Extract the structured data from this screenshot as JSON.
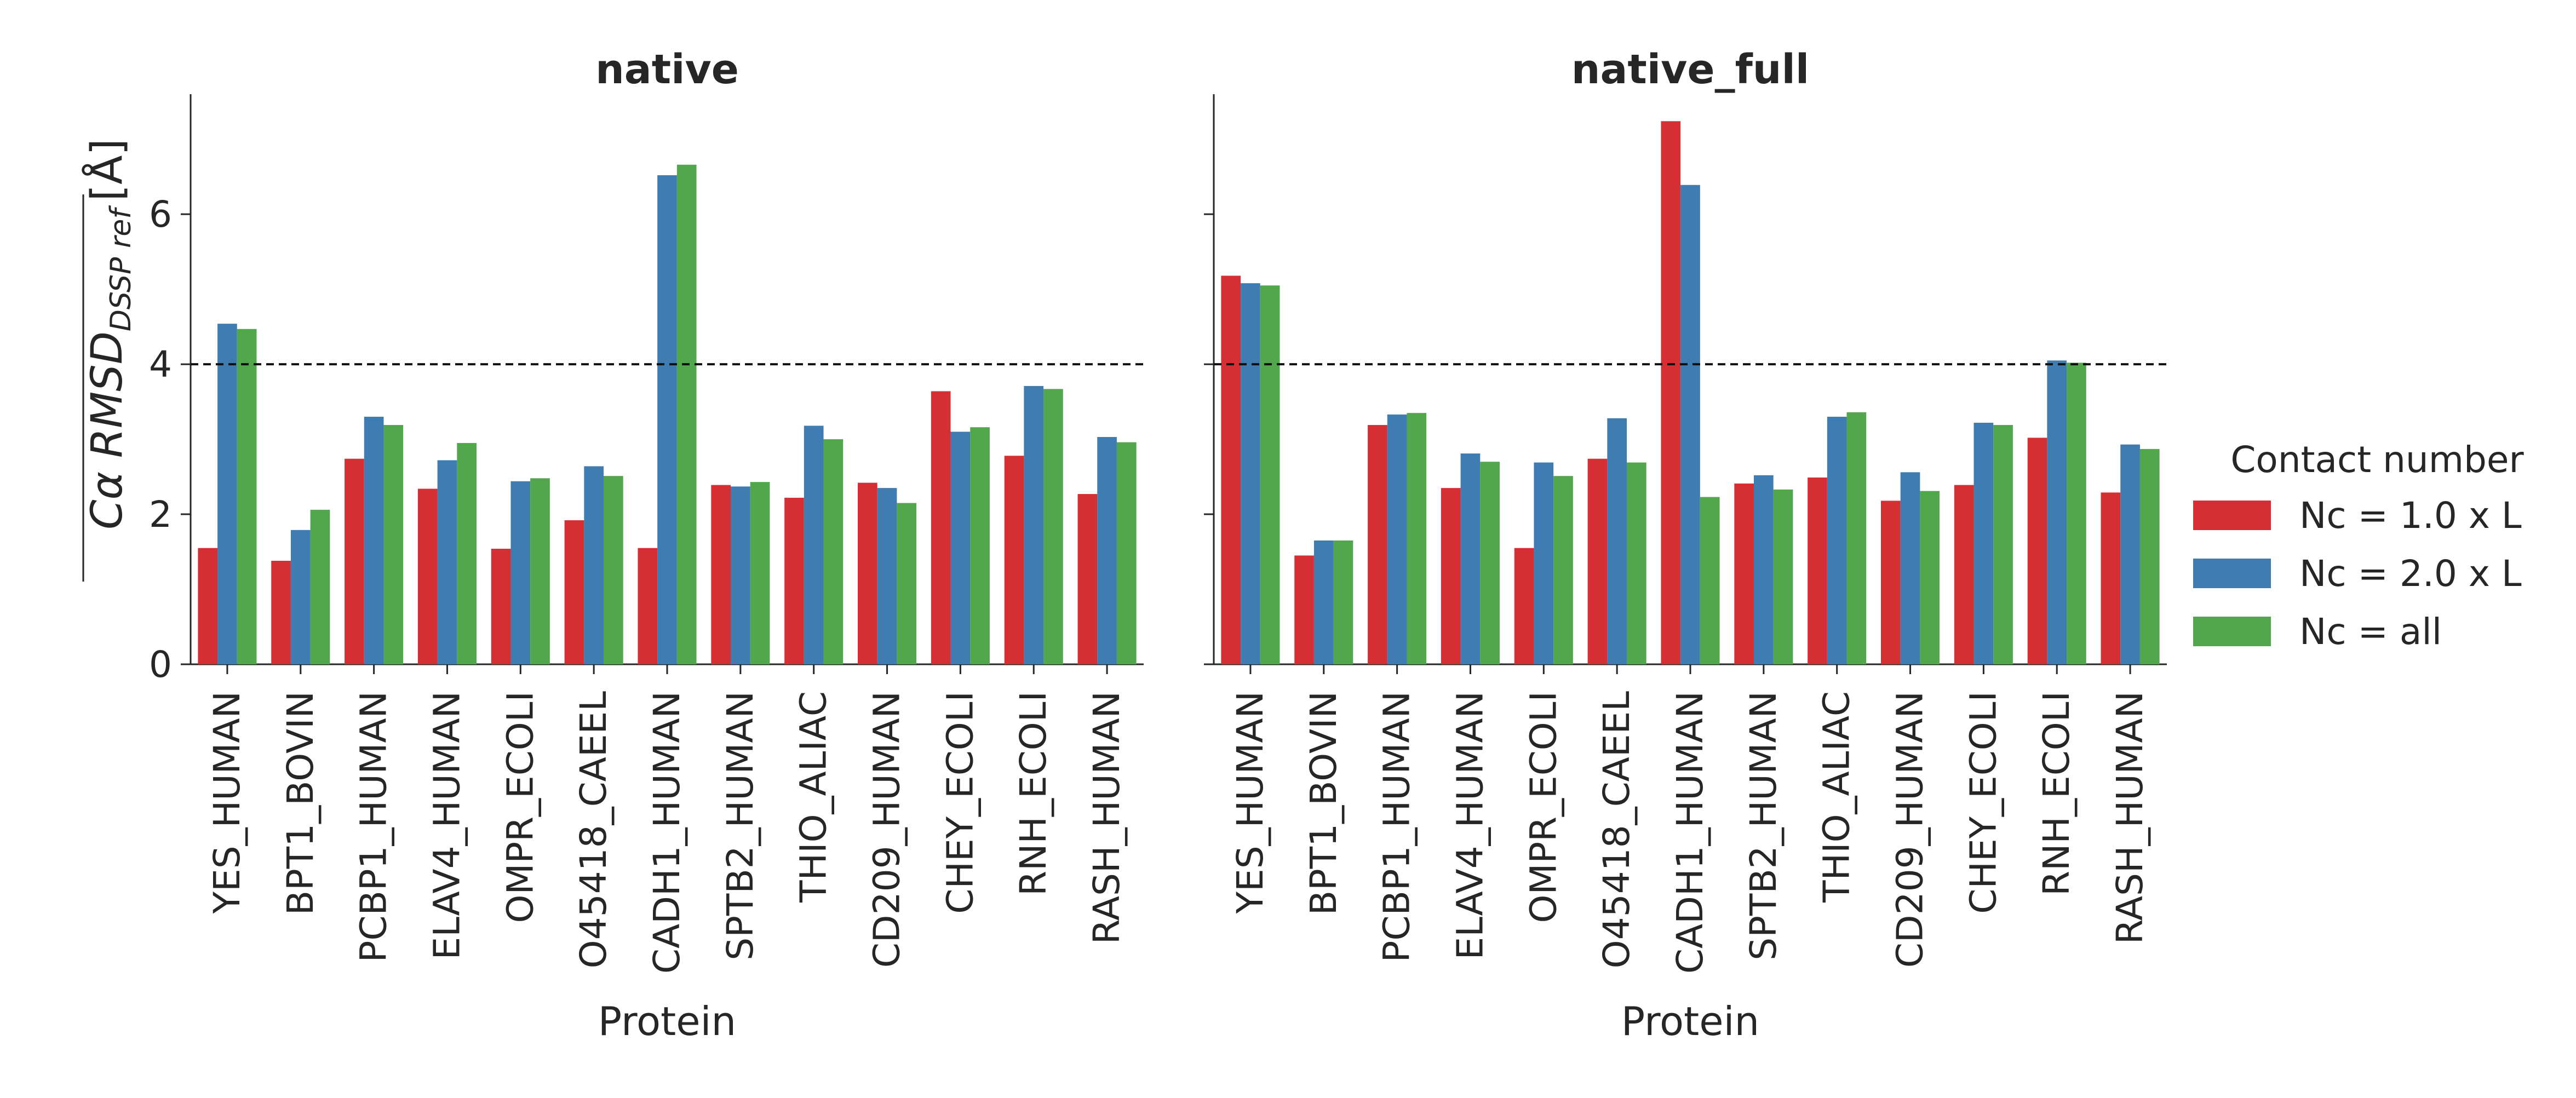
{
  "chart_data": {
    "type": "bar",
    "y_axis_label_parts": {
      "main": "Cα RMSD",
      "subscript": "DSSP ref",
      "unit": "[Å]"
    },
    "ylim": [
      0,
      7.6
    ],
    "yticks": [
      0,
      2,
      4,
      6
    ],
    "reference_line": {
      "y": 4,
      "style": "dashed"
    },
    "grid": false,
    "legend": {
      "title": "Contact number",
      "placement": "right",
      "entries": [
        "Nc = 1.0 x L",
        "Nc = 2.0 x L",
        "Nc = all"
      ]
    },
    "panels": [
      {
        "title": "native",
        "xlabel": "Protein",
        "categories": [
          "YES_HUMAN",
          "BPT1_BOVIN",
          "PCBP1_HUMAN",
          "ELAV4_HUMAN",
          "OMPR_ECOLI",
          "O45418_CAEEL",
          "CADH1_HUMAN",
          "SPTB2_HUMAN",
          "THIO_ALIAC",
          "CD209_HUMAN",
          "CHEY_ECOLI",
          "RNH_ECOLI",
          "RASH_HUMAN"
        ],
        "series": [
          {
            "name": "Nc = 1.0 x L",
            "color": "#d62f33",
            "values": [
              1.55,
              1.38,
              2.74,
              2.34,
              1.54,
              1.92,
              1.55,
              2.39,
              2.22,
              2.42,
              3.64,
              2.78,
              2.27
            ]
          },
          {
            "name": "Nc = 2.0 x L",
            "color": "#3f7cb2",
            "values": [
              4.54,
              1.79,
              3.3,
              2.72,
              2.44,
              2.64,
              6.52,
              2.37,
              3.18,
              2.35,
              3.1,
              3.71,
              3.03
            ]
          },
          {
            "name": "Nc = all",
            "color": "#52a74d",
            "values": [
              4.47,
              2.06,
              3.19,
              2.95,
              2.48,
              2.51,
              6.66,
              2.43,
              3.0,
              2.15,
              3.16,
              3.67,
              2.96
            ]
          }
        ]
      },
      {
        "title": "native_full",
        "xlabel": "Protein",
        "categories": [
          "YES_HUMAN",
          "BPT1_BOVIN",
          "PCBP1_HUMAN",
          "ELAV4_HUMAN",
          "OMPR_ECOLI",
          "O45418_CAEEL",
          "CADH1_HUMAN",
          "SPTB2_HUMAN",
          "THIO_ALIAC",
          "CD209_HUMAN",
          "CHEY_ECOLI",
          "RNH_ECOLI",
          "RASH_HUMAN"
        ],
        "series": [
          {
            "name": "Nc = 1.0 x L",
            "color": "#d62f33",
            "values": [
              5.18,
              1.45,
              3.19,
              2.35,
              1.55,
              2.74,
              7.24,
              2.41,
              2.49,
              2.18,
              2.39,
              3.02,
              2.29
            ]
          },
          {
            "name": "Nc = 2.0 x L",
            "color": "#3f7cb2",
            "values": [
              5.08,
              1.65,
              3.33,
              2.81,
              2.69,
              3.28,
              6.39,
              2.52,
              3.3,
              2.56,
              3.22,
              4.05,
              2.93
            ]
          },
          {
            "name": "Nc = all",
            "color": "#52a74d",
            "values": [
              5.05,
              1.65,
              3.35,
              2.7,
              2.51,
              2.69,
              2.23,
              2.33,
              3.36,
              2.31,
              3.19,
              4.02,
              2.87
            ]
          }
        ]
      }
    ]
  }
}
